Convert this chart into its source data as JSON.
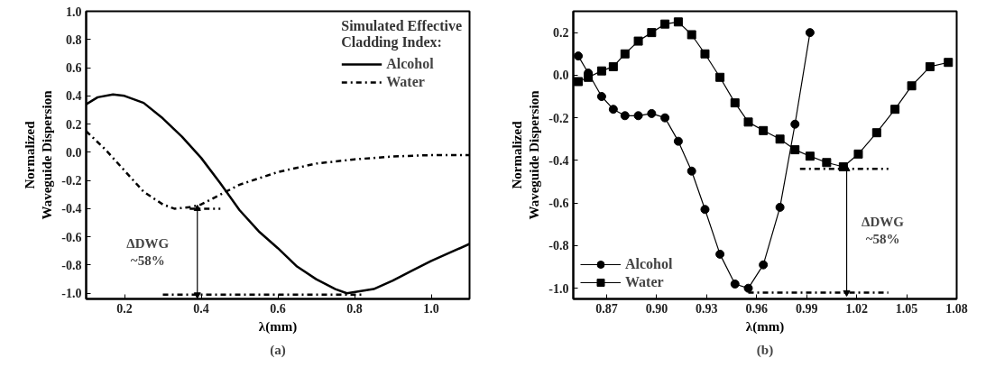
{
  "chart_data": [
    {
      "type": "line",
      "title": "(a)",
      "xlabel": "λ(mm)",
      "ylabel": "Normalized\nWaveguide Dispersion",
      "legend_title": "Simulated Effective\nCladding Index:",
      "legend": "top right",
      "xlim": [
        0.1,
        1.1
      ],
      "ylim": [
        -1.04,
        1.0
      ],
      "xticks": [
        0.2,
        0.4,
        0.6,
        0.8,
        {
          "value": 1.0,
          "label": "1.0"
        }
      ],
      "yticks": [
        {
          "value": -1.0,
          "label": "-1.0"
        },
        -0.8,
        -0.6,
        -0.4,
        -0.2,
        {
          "value": 0.0,
          "label": "0.0"
        },
        0.2,
        0.4,
        0.6,
        0.8,
        {
          "value": 1.0,
          "label": "1.0"
        }
      ],
      "series": [
        {
          "name": "Alcohol",
          "color": "#000000",
          "line_style": "solid",
          "x": [
            0.1,
            0.13,
            0.17,
            0.2,
            0.25,
            0.3,
            0.35,
            0.4,
            0.45,
            0.5,
            0.55,
            0.6,
            0.65,
            0.7,
            0.75,
            0.78,
            0.85,
            0.9,
            0.95,
            1.0,
            1.05,
            1.1
          ],
          "values": [
            0.34,
            0.39,
            0.41,
            0.4,
            0.35,
            0.24,
            0.11,
            -0.04,
            -0.22,
            -0.41,
            -0.56,
            -0.68,
            -0.81,
            -0.9,
            -0.97,
            -1.0,
            -0.97,
            -0.91,
            -0.84,
            -0.77,
            -0.71,
            -0.65
          ]
        },
        {
          "name": "Water",
          "color": "#000000",
          "line_style": "dashdot",
          "x": [
            0.1,
            0.15,
            0.2,
            0.25,
            0.3,
            0.33,
            0.37,
            0.4,
            0.45,
            0.5,
            0.6,
            0.7,
            0.8,
            0.9,
            1.0,
            1.1
          ],
          "values": [
            0.15,
            0.02,
            -0.13,
            -0.28,
            -0.37,
            -0.4,
            -0.39,
            -0.37,
            -0.3,
            -0.23,
            -0.14,
            -0.08,
            -0.05,
            -0.03,
            -0.02,
            -0.02
          ]
        },
        {
          "type": "line",
          "color": "#000000",
          "line_style": "dashdot",
          "x": [
            0.37,
            0.45
          ],
          "values": [
            -0.4,
            -0.4
          ]
        },
        {
          "type": "line",
          "color": "#000000",
          "line_style": "dashdot",
          "x": [
            0.3,
            0.82
          ],
          "values": [
            -1.01,
            -1.01
          ]
        },
        {
          "type": "line",
          "color": "#000000",
          "line_style": "solid",
          "marker": "triangle",
          "x": [
            0.39,
            0.39
          ],
          "values": [
            -0.4,
            -1.01
          ]
        }
      ],
      "annotations": [
        "ΔDWG\n~58%"
      ]
    },
    {
      "type": "line",
      "title": "(b)",
      "xlabel": "λ(mm)",
      "ylabel": "Normalized\nWaveguide Dispersion",
      "legend": "bottom left",
      "xlim": [
        0.85,
        1.08
      ],
      "ylim": [
        -1.05,
        0.3
      ],
      "xticks": [
        0.87,
        {
          "value": 0.9,
          "label": "0.90"
        },
        0.93,
        0.96,
        0.99,
        1.02,
        1.05,
        1.08
      ],
      "yticks": [
        {
          "value": -1.0,
          "label": "-1.0"
        },
        -0.8,
        -0.6,
        -0.4,
        -0.2,
        {
          "value": 0.0,
          "label": "0.0"
        },
        0.2
      ],
      "series": [
        {
          "name": "Alcohol",
          "color": "#000000",
          "line_style": "solid",
          "marker": "circle",
          "x": [
            0.853,
            0.859,
            0.867,
            0.874,
            0.881,
            0.889,
            0.897,
            0.905,
            0.913,
            0.921,
            0.929,
            0.938,
            0.947,
            0.955,
            0.964,
            0.974,
            0.983,
            0.992
          ],
          "values": [
            0.09,
            0.01,
            -0.1,
            -0.16,
            -0.19,
            -0.19,
            -0.18,
            -0.2,
            -0.31,
            -0.45,
            -0.63,
            -0.84,
            -0.98,
            -1.0,
            -0.89,
            -0.62,
            -0.23,
            0.2
          ]
        },
        {
          "name": "Water",
          "color": "#000000",
          "line_style": "solid",
          "marker": "square",
          "x": [
            0.853,
            0.859,
            0.867,
            0.874,
            0.881,
            0.889,
            0.897,
            0.905,
            0.913,
            0.921,
            0.929,
            0.938,
            0.947,
            0.955,
            0.964,
            0.974,
            0.983,
            0.992,
            1.002,
            1.012,
            1.021,
            1.032,
            1.043,
            1.053,
            1.064,
            1.075
          ],
          "values": [
            -0.03,
            -0.01,
            0.02,
            0.04,
            0.1,
            0.16,
            0.2,
            0.24,
            0.25,
            0.19,
            0.1,
            -0.01,
            -0.13,
            -0.22,
            -0.26,
            -0.3,
            -0.35,
            -0.38,
            -0.41,
            -0.43,
            -0.37,
            -0.27,
            -0.16,
            -0.05,
            0.04,
            0.06
          ]
        },
        {
          "type": "line",
          "color": "#000000",
          "line_style": "dashdot",
          "x": [
            0.986,
            1.039
          ],
          "values": [
            -0.44,
            -0.44
          ]
        },
        {
          "type": "line",
          "color": "#000000",
          "line_style": "dashdot",
          "x": [
            0.955,
            1.039
          ],
          "values": [
            -1.02,
            -1.02
          ]
        },
        {
          "type": "line",
          "color": "#000000",
          "line_style": "solid",
          "marker": "triangle",
          "x": [
            1.014,
            1.014
          ],
          "values": [
            -0.44,
            -1.02
          ]
        }
      ],
      "annotations": [
        "ΔDWG\n~58%"
      ]
    }
  ]
}
